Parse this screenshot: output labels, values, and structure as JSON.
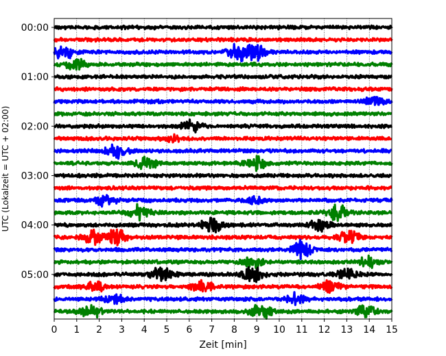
{
  "chart_data": {
    "type": "line",
    "title": "",
    "xlabel": "Zeit  [min]",
    "ylabel": "UTC (Lokalzeit = UTC + 02:00)",
    "xlim": [
      0,
      15
    ],
    "x_ticks": [
      "0",
      "1",
      "2",
      "3",
      "4",
      "5",
      "6",
      "7",
      "8",
      "9",
      "10",
      "11",
      "12",
      "13",
      "14",
      "15"
    ],
    "y_tick_labels": [
      "00:00",
      "01:00",
      "02:00",
      "03:00",
      "04:00",
      "05:00"
    ],
    "y_tick_rows": [
      0,
      4,
      8,
      12,
      16,
      20
    ],
    "grid": "vertical dotted at each minute",
    "colors": [
      "#000000",
      "#ff0000",
      "#0000ff",
      "#008000"
    ],
    "row_interval_minutes": 15,
    "num_rows": 24,
    "traces": [
      {
        "row": 0,
        "start": "00:00",
        "color": "#000000",
        "events": []
      },
      {
        "row": 1,
        "start": "00:15",
        "color": "#ff0000",
        "events": []
      },
      {
        "row": 2,
        "start": "00:30",
        "color": "#0000ff",
        "events": [
          {
            "t": 0.4,
            "amp": 0.9
          },
          {
            "t": 8.2,
            "amp": 1.0
          },
          {
            "t": 9.0,
            "amp": 0.9
          }
        ]
      },
      {
        "row": 3,
        "start": "00:45",
        "color": "#008000",
        "events": [
          {
            "t": 1.0,
            "amp": 0.6
          }
        ]
      },
      {
        "row": 4,
        "start": "01:00",
        "color": "#000000",
        "events": []
      },
      {
        "row": 5,
        "start": "01:15",
        "color": "#ff0000",
        "events": []
      },
      {
        "row": 6,
        "start": "01:30",
        "color": "#0000ff",
        "events": [
          {
            "t": 14.2,
            "amp": 0.5
          }
        ]
      },
      {
        "row": 7,
        "start": "01:45",
        "color": "#008000",
        "events": []
      },
      {
        "row": 8,
        "start": "02:00",
        "color": "#000000",
        "events": [
          {
            "t": 6.1,
            "amp": 0.7
          }
        ]
      },
      {
        "row": 9,
        "start": "02:15",
        "color": "#ff0000",
        "events": [
          {
            "t": 5.2,
            "amp": 0.4
          }
        ]
      },
      {
        "row": 10,
        "start": "02:30",
        "color": "#0000ff",
        "events": [
          {
            "t": 2.8,
            "amp": 0.8
          }
        ]
      },
      {
        "row": 11,
        "start": "02:45",
        "color": "#008000",
        "events": [
          {
            "t": 4.1,
            "amp": 0.7
          },
          {
            "t": 9.0,
            "amp": 0.8
          }
        ]
      },
      {
        "row": 12,
        "start": "03:00",
        "color": "#000000",
        "events": []
      },
      {
        "row": 13,
        "start": "03:15",
        "color": "#ff0000",
        "events": []
      },
      {
        "row": 14,
        "start": "03:30",
        "color": "#0000ff",
        "events": [
          {
            "t": 2.3,
            "amp": 0.6
          },
          {
            "t": 8.9,
            "amp": 0.5
          }
        ]
      },
      {
        "row": 15,
        "start": "03:45",
        "color": "#008000",
        "events": [
          {
            "t": 3.8,
            "amp": 0.9
          },
          {
            "t": 12.6,
            "amp": 1.0
          }
        ]
      },
      {
        "row": 16,
        "start": "04:00",
        "color": "#000000",
        "events": [
          {
            "t": 7.0,
            "amp": 0.9
          },
          {
            "t": 11.8,
            "amp": 0.7
          }
        ]
      },
      {
        "row": 17,
        "start": "04:15",
        "color": "#ff0000",
        "events": [
          {
            "t": 1.7,
            "amp": 0.8
          },
          {
            "t": 2.7,
            "amp": 1.0
          },
          {
            "t": 13.1,
            "amp": 0.8
          }
        ]
      },
      {
        "row": 18,
        "start": "04:30",
        "color": "#0000ff",
        "events": [
          {
            "t": 11.0,
            "amp": 1.0
          }
        ]
      },
      {
        "row": 19,
        "start": "04:45",
        "color": "#008000",
        "events": [
          {
            "t": 8.8,
            "amp": 0.7
          },
          {
            "t": 14.0,
            "amp": 0.7
          }
        ]
      },
      {
        "row": 20,
        "start": "05:00",
        "color": "#000000",
        "events": [
          {
            "t": 4.8,
            "amp": 1.0
          },
          {
            "t": 8.8,
            "amp": 1.0
          },
          {
            "t": 13.0,
            "amp": 0.6
          }
        ]
      },
      {
        "row": 21,
        "start": "05:15",
        "color": "#ff0000",
        "events": [
          {
            "t": 1.8,
            "amp": 0.6
          },
          {
            "t": 6.6,
            "amp": 0.7
          },
          {
            "t": 12.3,
            "amp": 0.7
          }
        ]
      },
      {
        "row": 22,
        "start": "05:30",
        "color": "#0000ff",
        "events": [
          {
            "t": 2.7,
            "amp": 0.5
          },
          {
            "t": 10.7,
            "amp": 0.6
          }
        ]
      },
      {
        "row": 23,
        "start": "05:45",
        "color": "#008000",
        "events": [
          {
            "t": 1.6,
            "amp": 0.8
          },
          {
            "t": 9.2,
            "amp": 0.9
          },
          {
            "t": 13.8,
            "amp": 0.8
          }
        ]
      }
    ]
  }
}
